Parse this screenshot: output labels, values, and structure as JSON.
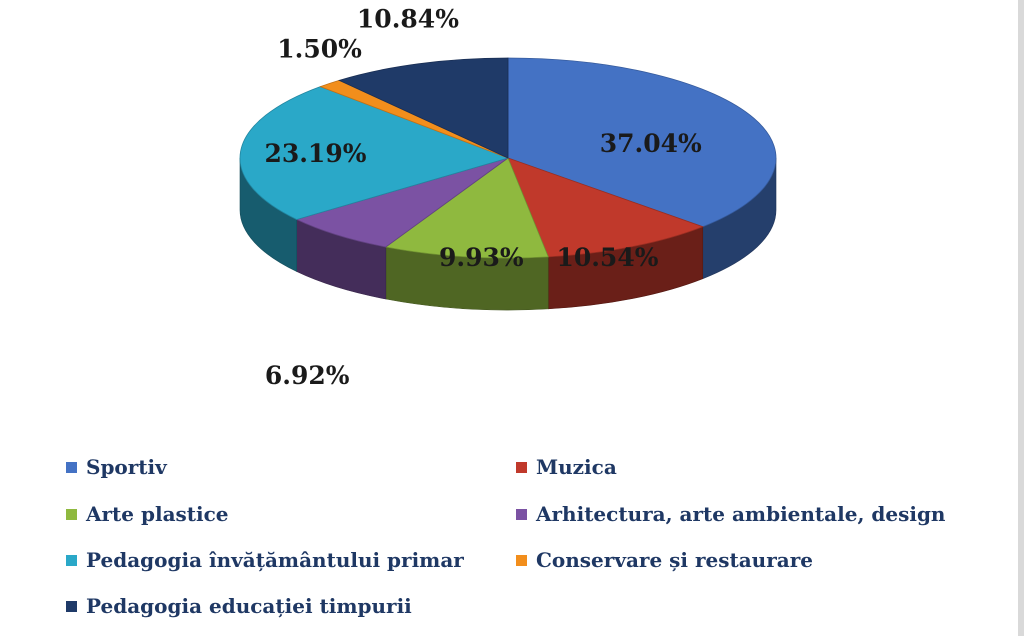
{
  "chart_data": {
    "type": "pie",
    "title": "",
    "style": "3d",
    "series": [
      {
        "name": "Sportiv",
        "value": 37.04,
        "label": "37.04%",
        "color": "#4472c4"
      },
      {
        "name": "Muzica",
        "value": 10.54,
        "label": "10.54%",
        "color": "#c0392b"
      },
      {
        "name": "Arte plastice",
        "value": 9.93,
        "label": "9.93%",
        "color": "#8fb93f"
      },
      {
        "name": "Arhitectura, arte ambientale, design",
        "value": 6.92,
        "label": "6.92%",
        "color": "#7b52a3"
      },
      {
        "name": "Pedagogia învățământului primar",
        "value": 23.19,
        "label": "23.19%",
        "color": "#2aa8c8"
      },
      {
        "name": "Conservare și restaurare",
        "value": 1.5,
        "label": "1.50%",
        "color": "#f28e1c"
      },
      {
        "name": "Pedagogia educației timpurii",
        "value": 10.84,
        "label": "10.84%",
        "color": "#1f3a68"
      }
    ],
    "legend_position": "bottom"
  }
}
